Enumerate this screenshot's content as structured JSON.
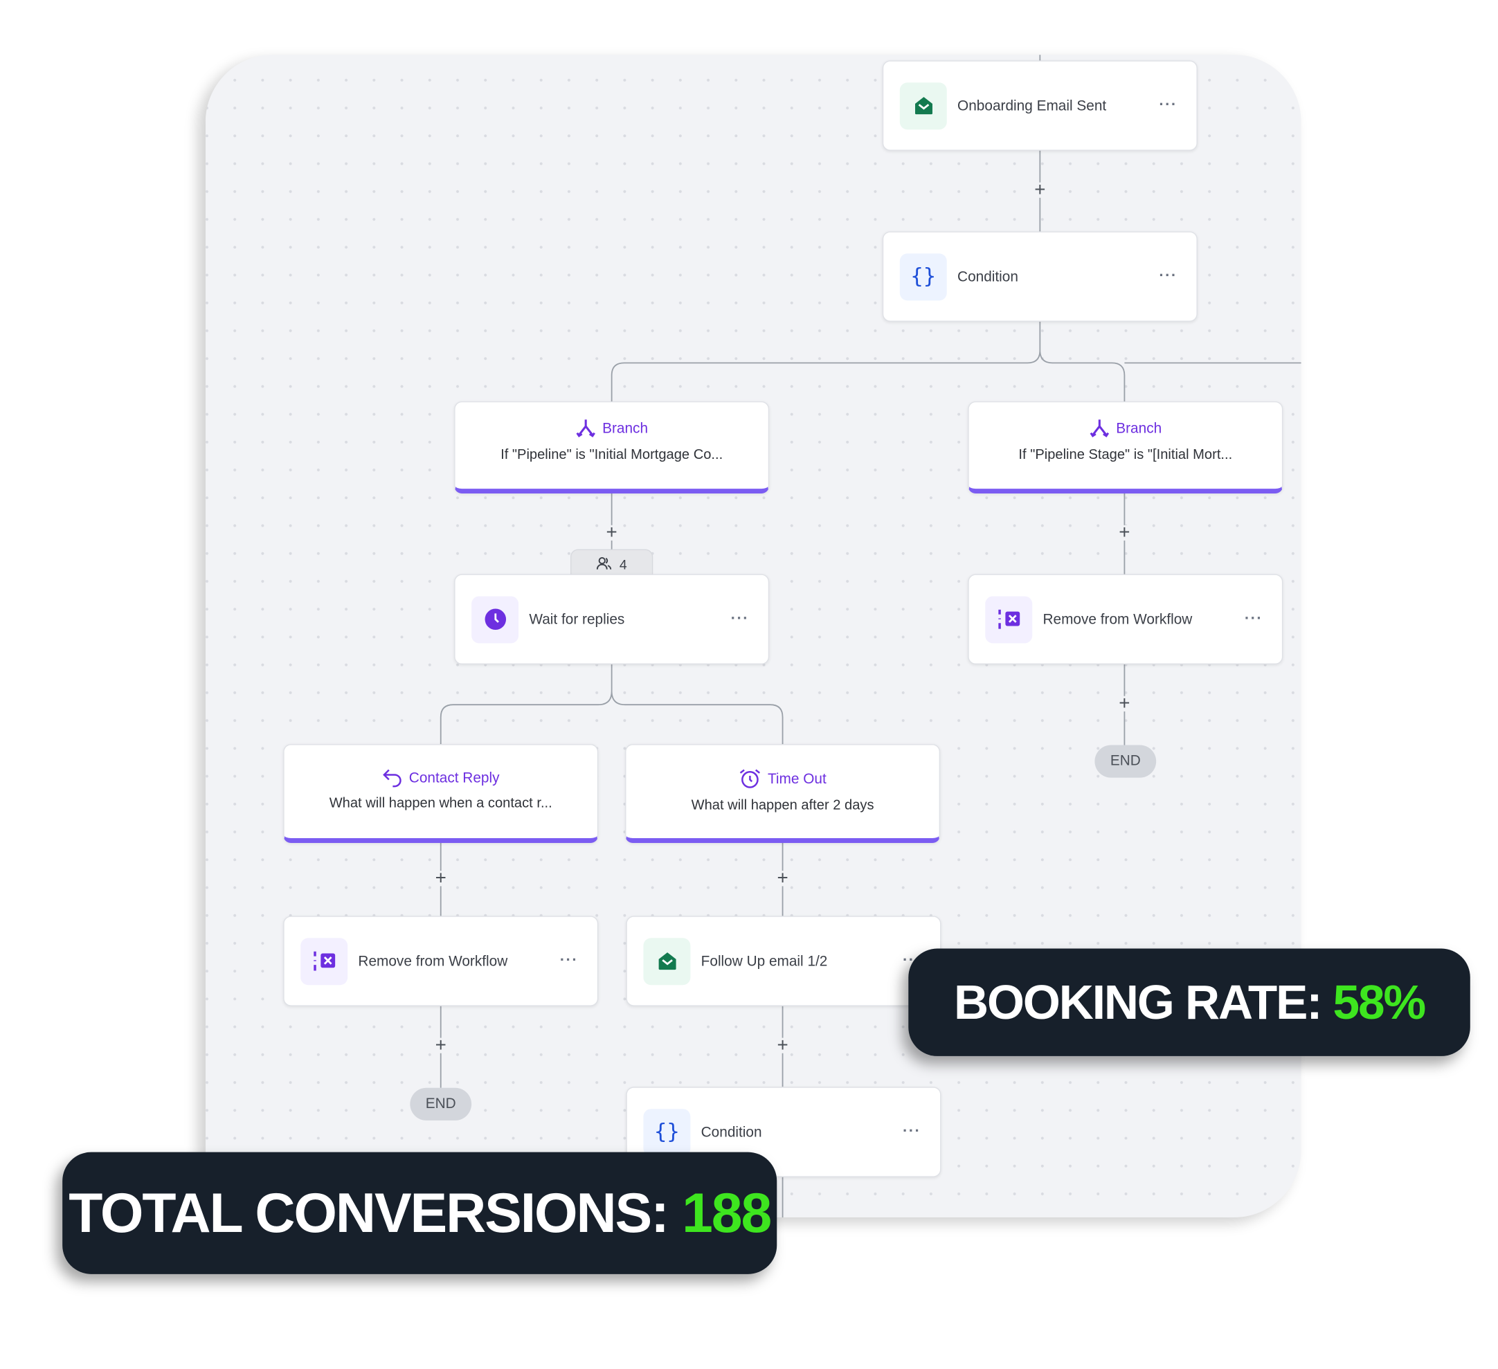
{
  "colors": {
    "accent": "#7b5cf2",
    "stat_background": "#17202b",
    "stat_value": "#3ee51f",
    "email_icon": "#137a4f",
    "condition_icon": "#1d4ed8"
  },
  "nodes": {
    "onboarding": {
      "label": "Onboarding Email Sent",
      "icon": "envelope-open-icon",
      "menu": "···"
    },
    "condition_top": {
      "label": "Condition",
      "icon": "curly-braces-icon",
      "menu": "···"
    },
    "branch_left": {
      "title": "Branch",
      "subtitle": "If \"Pipeline\" is \"Initial Mortgage Co...",
      "icon": "branch-split-icon"
    },
    "branch_right": {
      "title": "Branch",
      "subtitle": "If \"Pipeline Stage\" is \"[Initial Mort...",
      "icon": "branch-split-icon"
    },
    "contact_count": {
      "value": "4",
      "icon": "users-icon"
    },
    "wait": {
      "label": "Wait for replies",
      "icon": "clock-icon",
      "menu": "···"
    },
    "remove_right": {
      "label": "Remove from Workflow",
      "icon": "remove-workflow-icon",
      "menu": "···"
    },
    "end_right": {
      "label": "END"
    },
    "contact_reply": {
      "title": "Contact Reply",
      "subtitle": "What will happen when a contact r...",
      "icon": "reply-arrow-icon"
    },
    "time_out": {
      "title": "Time Out",
      "subtitle": "What will happen after 2 days",
      "icon": "alarm-clock-icon"
    },
    "remove_left": {
      "label": "Remove from Workflow",
      "icon": "remove-workflow-icon",
      "menu": "···"
    },
    "follow_up": {
      "label": "Follow Up email 1/2",
      "icon": "envelope-open-icon",
      "menu": "···"
    },
    "end_left": {
      "label": "END"
    },
    "condition_bottom": {
      "label": "Condition",
      "icon": "curly-braces-icon",
      "menu": "···"
    }
  },
  "add_step": "+",
  "stats": {
    "booking": {
      "label": "BOOKING RATE: ",
      "value": "58%"
    },
    "conversions": {
      "label": "TOTAL CONVERSIONS: ",
      "value": "188"
    }
  }
}
